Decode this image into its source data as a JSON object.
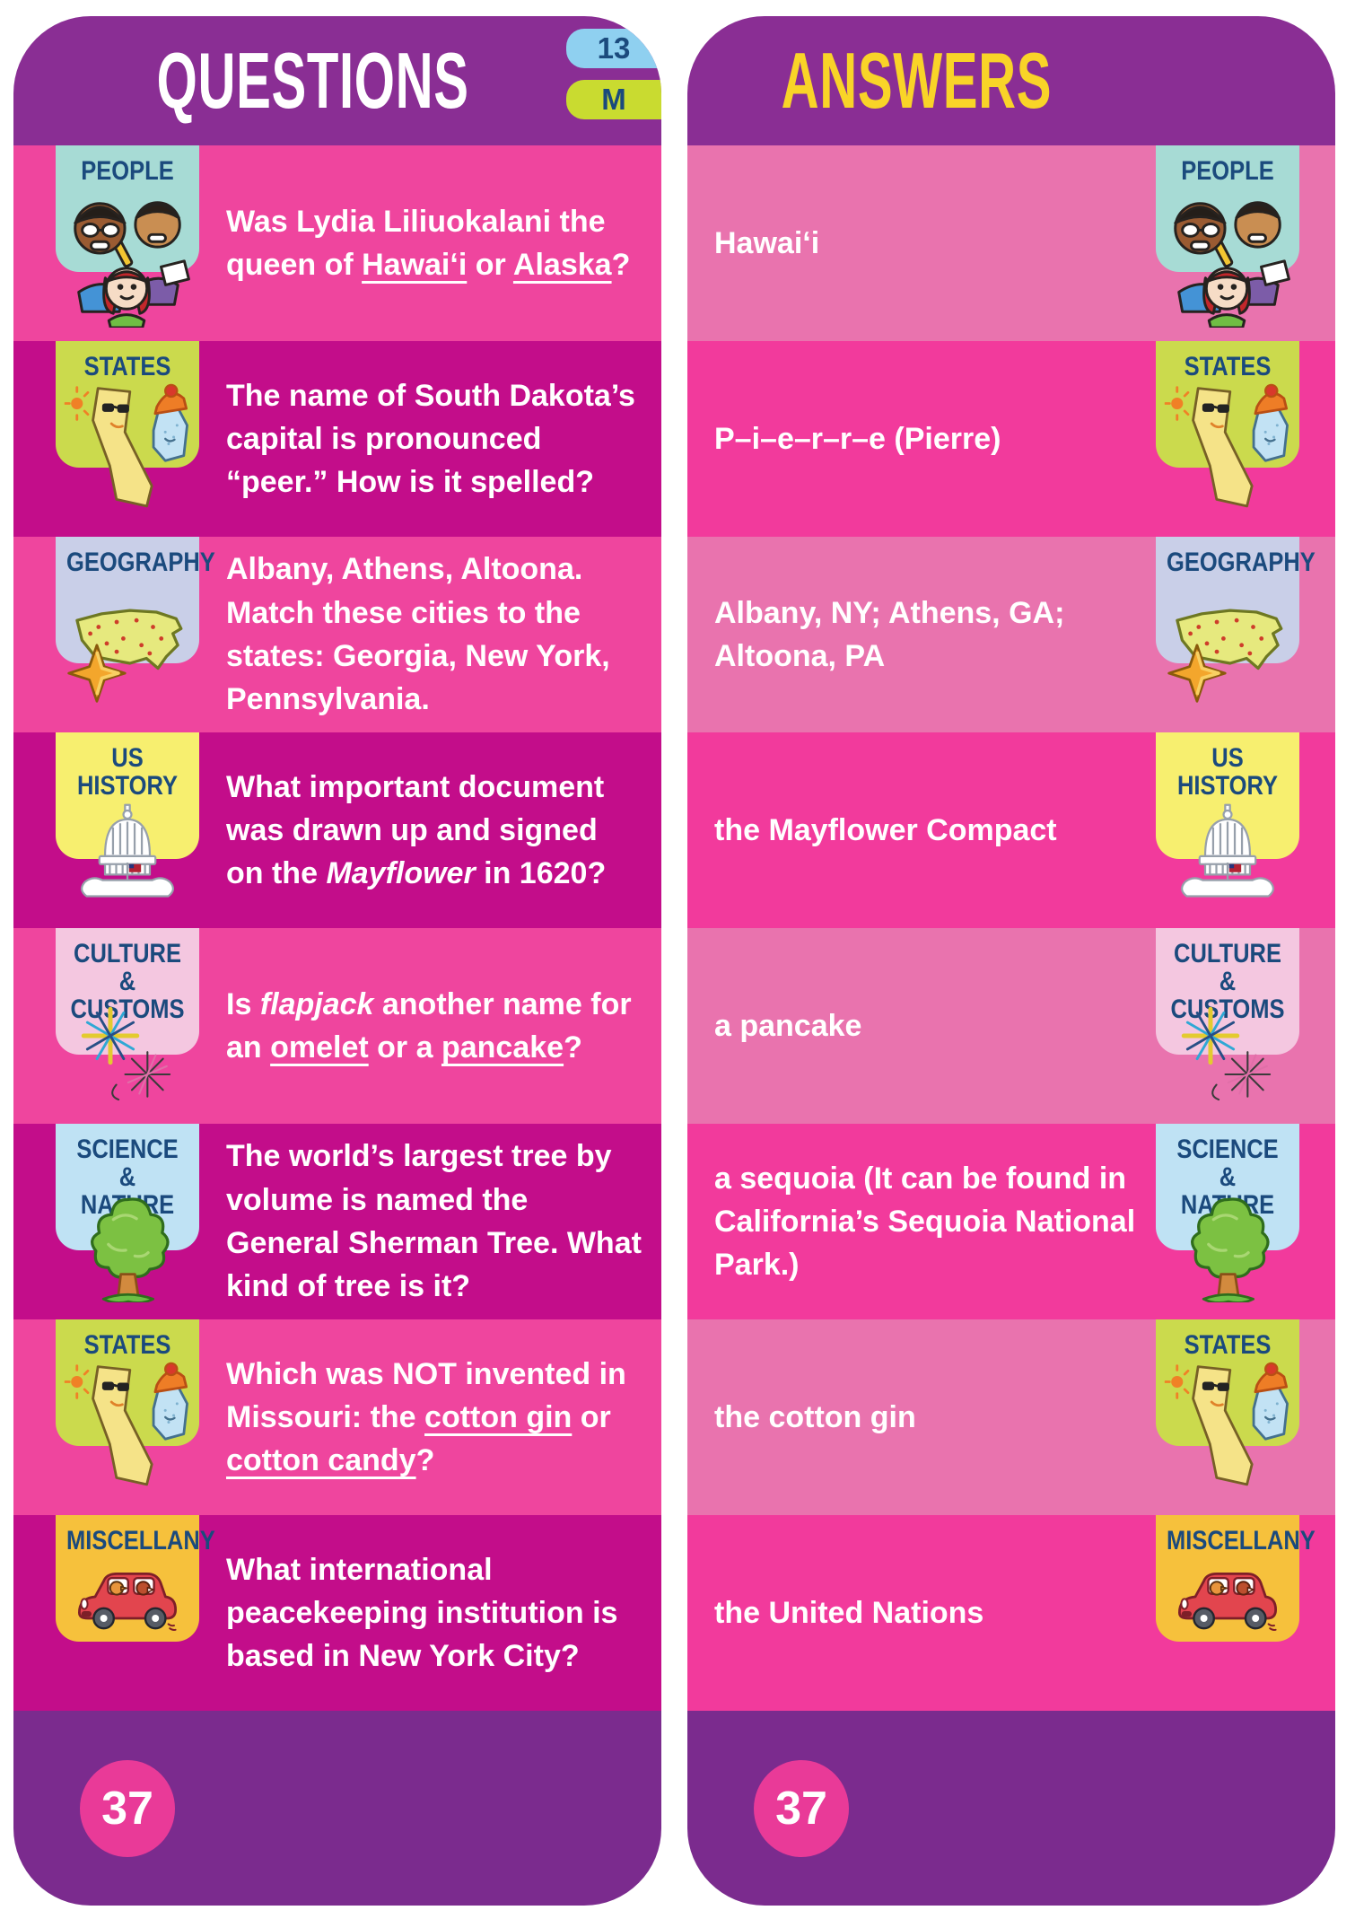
{
  "header": {
    "questions_title": "QUESTIONS",
    "answers_title": "ANSWERS",
    "tab_number": "13",
    "tab_letter": "M"
  },
  "footer": {
    "page_number": "37"
  },
  "palette": {
    "header_purple": "#8A2E94",
    "footer_purple": "#7B2B8E",
    "questions_row_pink": "#EF459E",
    "questions_row_magenta": "#C30D8A",
    "answers_row_soft_pink": "#E973AE",
    "answers_row_hot_pink": "#F23A9C",
    "badge_label_navy": "#1B4A7D",
    "answers_title_yellow": "#F9D428",
    "tab_number_blue": "#8FD0F0",
    "tab_letter_green": "#C9DB30",
    "page_circle_pink": "#E93A98"
  },
  "questions": {
    "rows": [
      {
        "category": "PEOPLE",
        "icon": "people-icon",
        "badge_color": "#A7DBD5",
        "text": "Was Lydia Liliuokalani the queen of __Hawaiʻi__ or __Alaska__?"
      },
      {
        "category": "STATES",
        "icon": "states-icon",
        "badge_color": "#CBDA4D",
        "text": "The name of South Dakota’s capital is pronounced “peer.” How is it spelled?"
      },
      {
        "category": "GEOGRAPHY",
        "icon": "geography-icon",
        "badge_color": "#C9CFE8",
        "text": "Albany, Athens, Altoona. Match these cities to the states: Georgia, New York, Pennsylvania."
      },
      {
        "category": "US\nHISTORY",
        "icon": "us-history-icon",
        "badge_color": "#F7EF6F",
        "text": "What important document was drawn up and signed on the *Mayflower* in 1620?"
      },
      {
        "category": "CULTURE &\nCUSTOMS",
        "icon": "fireworks-icon",
        "badge_color": "#F4C7E0",
        "text": "Is *flapjack* another name for an __omelet__ or a __pancake__?"
      },
      {
        "category": "SCIENCE &\nNATURE",
        "icon": "tree-icon",
        "badge_color": "#BFE2F4",
        "text": "The world’s largest tree by volume is named the General Sherman Tree. What kind of tree is it?"
      },
      {
        "category": "STATES",
        "icon": "states-icon",
        "badge_color": "#CBDA4D",
        "text": "Which was NOT invented in Missouri: the __cotton gin__ or __cotton candy__?"
      },
      {
        "category": "MISCELLANY",
        "icon": "car-icon",
        "badge_color": "#F6C13C",
        "text": "What international peacekeeping institution is based in New York City?"
      }
    ]
  },
  "answers": {
    "rows": [
      {
        "category": "PEOPLE",
        "icon": "people-icon",
        "badge_color": "#A7DBD5",
        "text": "Hawaiʻi"
      },
      {
        "category": "STATES",
        "icon": "states-icon",
        "badge_color": "#CBDA4D",
        "text": "P–i–e–r–r–e (Pierre)"
      },
      {
        "category": "GEOGRAPHY",
        "icon": "geography-icon",
        "badge_color": "#C9CFE8",
        "text": "Albany, NY; Athens, GA; Altoona, PA"
      },
      {
        "category": "US\nHISTORY",
        "icon": "us-history-icon",
        "badge_color": "#F7EF6F",
        "text": "the Mayflower Compact"
      },
      {
        "category": "CULTURE &\nCUSTOMS",
        "icon": "fireworks-icon",
        "badge_color": "#F4C7E0",
        "text": "a pancake"
      },
      {
        "category": "SCIENCE &\nNATURE",
        "icon": "tree-icon",
        "badge_color": "#BFE2F4",
        "text": "a sequoia (It can be found in California’s Sequoia National Park.)"
      },
      {
        "category": "STATES",
        "icon": "states-icon",
        "badge_color": "#CBDA4D",
        "text": "the cotton gin"
      },
      {
        "category": "MISCELLANY",
        "icon": "car-icon",
        "badge_color": "#F6C13C",
        "text": "the United Nations"
      }
    ]
  }
}
